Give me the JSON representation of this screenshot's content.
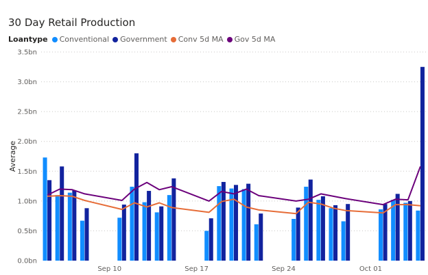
{
  "title": "30 Day Retail Production",
  "legend": {
    "title": "Loantype",
    "items": [
      {
        "label": "Conventional",
        "color": "#118DFF"
      },
      {
        "label": "Government",
        "color": "#12239E"
      },
      {
        "label": "Conv 5d MA",
        "color": "#E66C37"
      },
      {
        "label": "Gov 5d MA",
        "color": "#6B007B"
      }
    ]
  },
  "chart_data": {
    "type": "bar",
    "ylabel": "Average",
    "xlabel": "",
    "ylim": [
      0,
      3.5
    ],
    "yticks": [
      {
        "value": 0,
        "label": "0.0bn"
      },
      {
        "value": 0.5,
        "label": "0.5bn"
      },
      {
        "value": 1.0,
        "label": "1.0bn"
      },
      {
        "value": 1.5,
        "label": "1.5bn"
      },
      {
        "value": 2.0,
        "label": "2.0bn"
      },
      {
        "value": 2.5,
        "label": "2.5bn"
      },
      {
        "value": 3.0,
        "label": "3.0bn"
      },
      {
        "value": 3.5,
        "label": "3.5bn"
      }
    ],
    "xticks": [
      {
        "date": "2023-09-10",
        "label": "Sep 10"
      },
      {
        "date": "2023-09-17",
        "label": "Sep 17"
      },
      {
        "date": "2023-09-24",
        "label": "Sep 24"
      },
      {
        "date": "2023-10-01",
        "label": "Oct 01"
      }
    ],
    "dates": [
      "2023-09-05",
      "2023-09-06",
      "2023-09-07",
      "2023-09-08",
      "2023-09-11",
      "2023-09-12",
      "2023-09-13",
      "2023-09-14",
      "2023-09-15",
      "2023-09-18",
      "2023-09-19",
      "2023-09-20",
      "2023-09-21",
      "2023-09-22",
      "2023-09-25",
      "2023-09-26",
      "2023-09-27",
      "2023-09-28",
      "2023-09-29",
      "2023-10-02",
      "2023-10-03",
      "2023-10-04",
      "2023-10-05"
    ],
    "series": [
      {
        "name": "Conventional",
        "kind": "bar",
        "color": "#118DFF",
        "values": [
          1.73,
          1.1,
          1.14,
          0.67,
          0.72,
          1.24,
          0.98,
          0.81,
          1.1,
          0.5,
          1.25,
          1.21,
          1.2,
          0.61,
          0.7,
          1.24,
          1.02,
          0.88,
          0.66,
          0.86,
          1.02,
          0.97,
          0.84
        ]
      },
      {
        "name": "Government",
        "kind": "bar",
        "color": "#12239E",
        "values": [
          1.35,
          1.58,
          1.18,
          0.88,
          0.94,
          1.8,
          1.17,
          0.91,
          1.38,
          0.71,
          1.32,
          1.27,
          1.29,
          0.79,
          0.89,
          1.36,
          1.08,
          0.93,
          0.95,
          0.95,
          1.12,
          1.0,
          3.25
        ]
      },
      {
        "name": "Conv 5d MA",
        "kind": "line",
        "color": "#E66C37",
        "values": [
          1.08,
          1.09,
          1.08,
          1.01,
          0.86,
          0.97,
          0.9,
          0.97,
          0.89,
          0.81,
          0.99,
          1.03,
          0.9,
          0.85,
          0.79,
          0.98,
          0.95,
          0.88,
          0.84,
          0.8,
          0.94,
          0.94,
          0.92
        ]
      },
      {
        "name": "Gov 5d MA",
        "kind": "line",
        "color": "#6B007B",
        "values": [
          1.1,
          1.2,
          1.19,
          1.12,
          1.01,
          1.2,
          1.31,
          1.19,
          1.24,
          1.0,
          1.16,
          1.12,
          1.2,
          1.09,
          1.0,
          1.03,
          1.12,
          1.08,
          1.04,
          0.94,
          1.03,
          1.02,
          1.58
        ]
      }
    ],
    "grid": true,
    "legend_position": "top-left"
  }
}
